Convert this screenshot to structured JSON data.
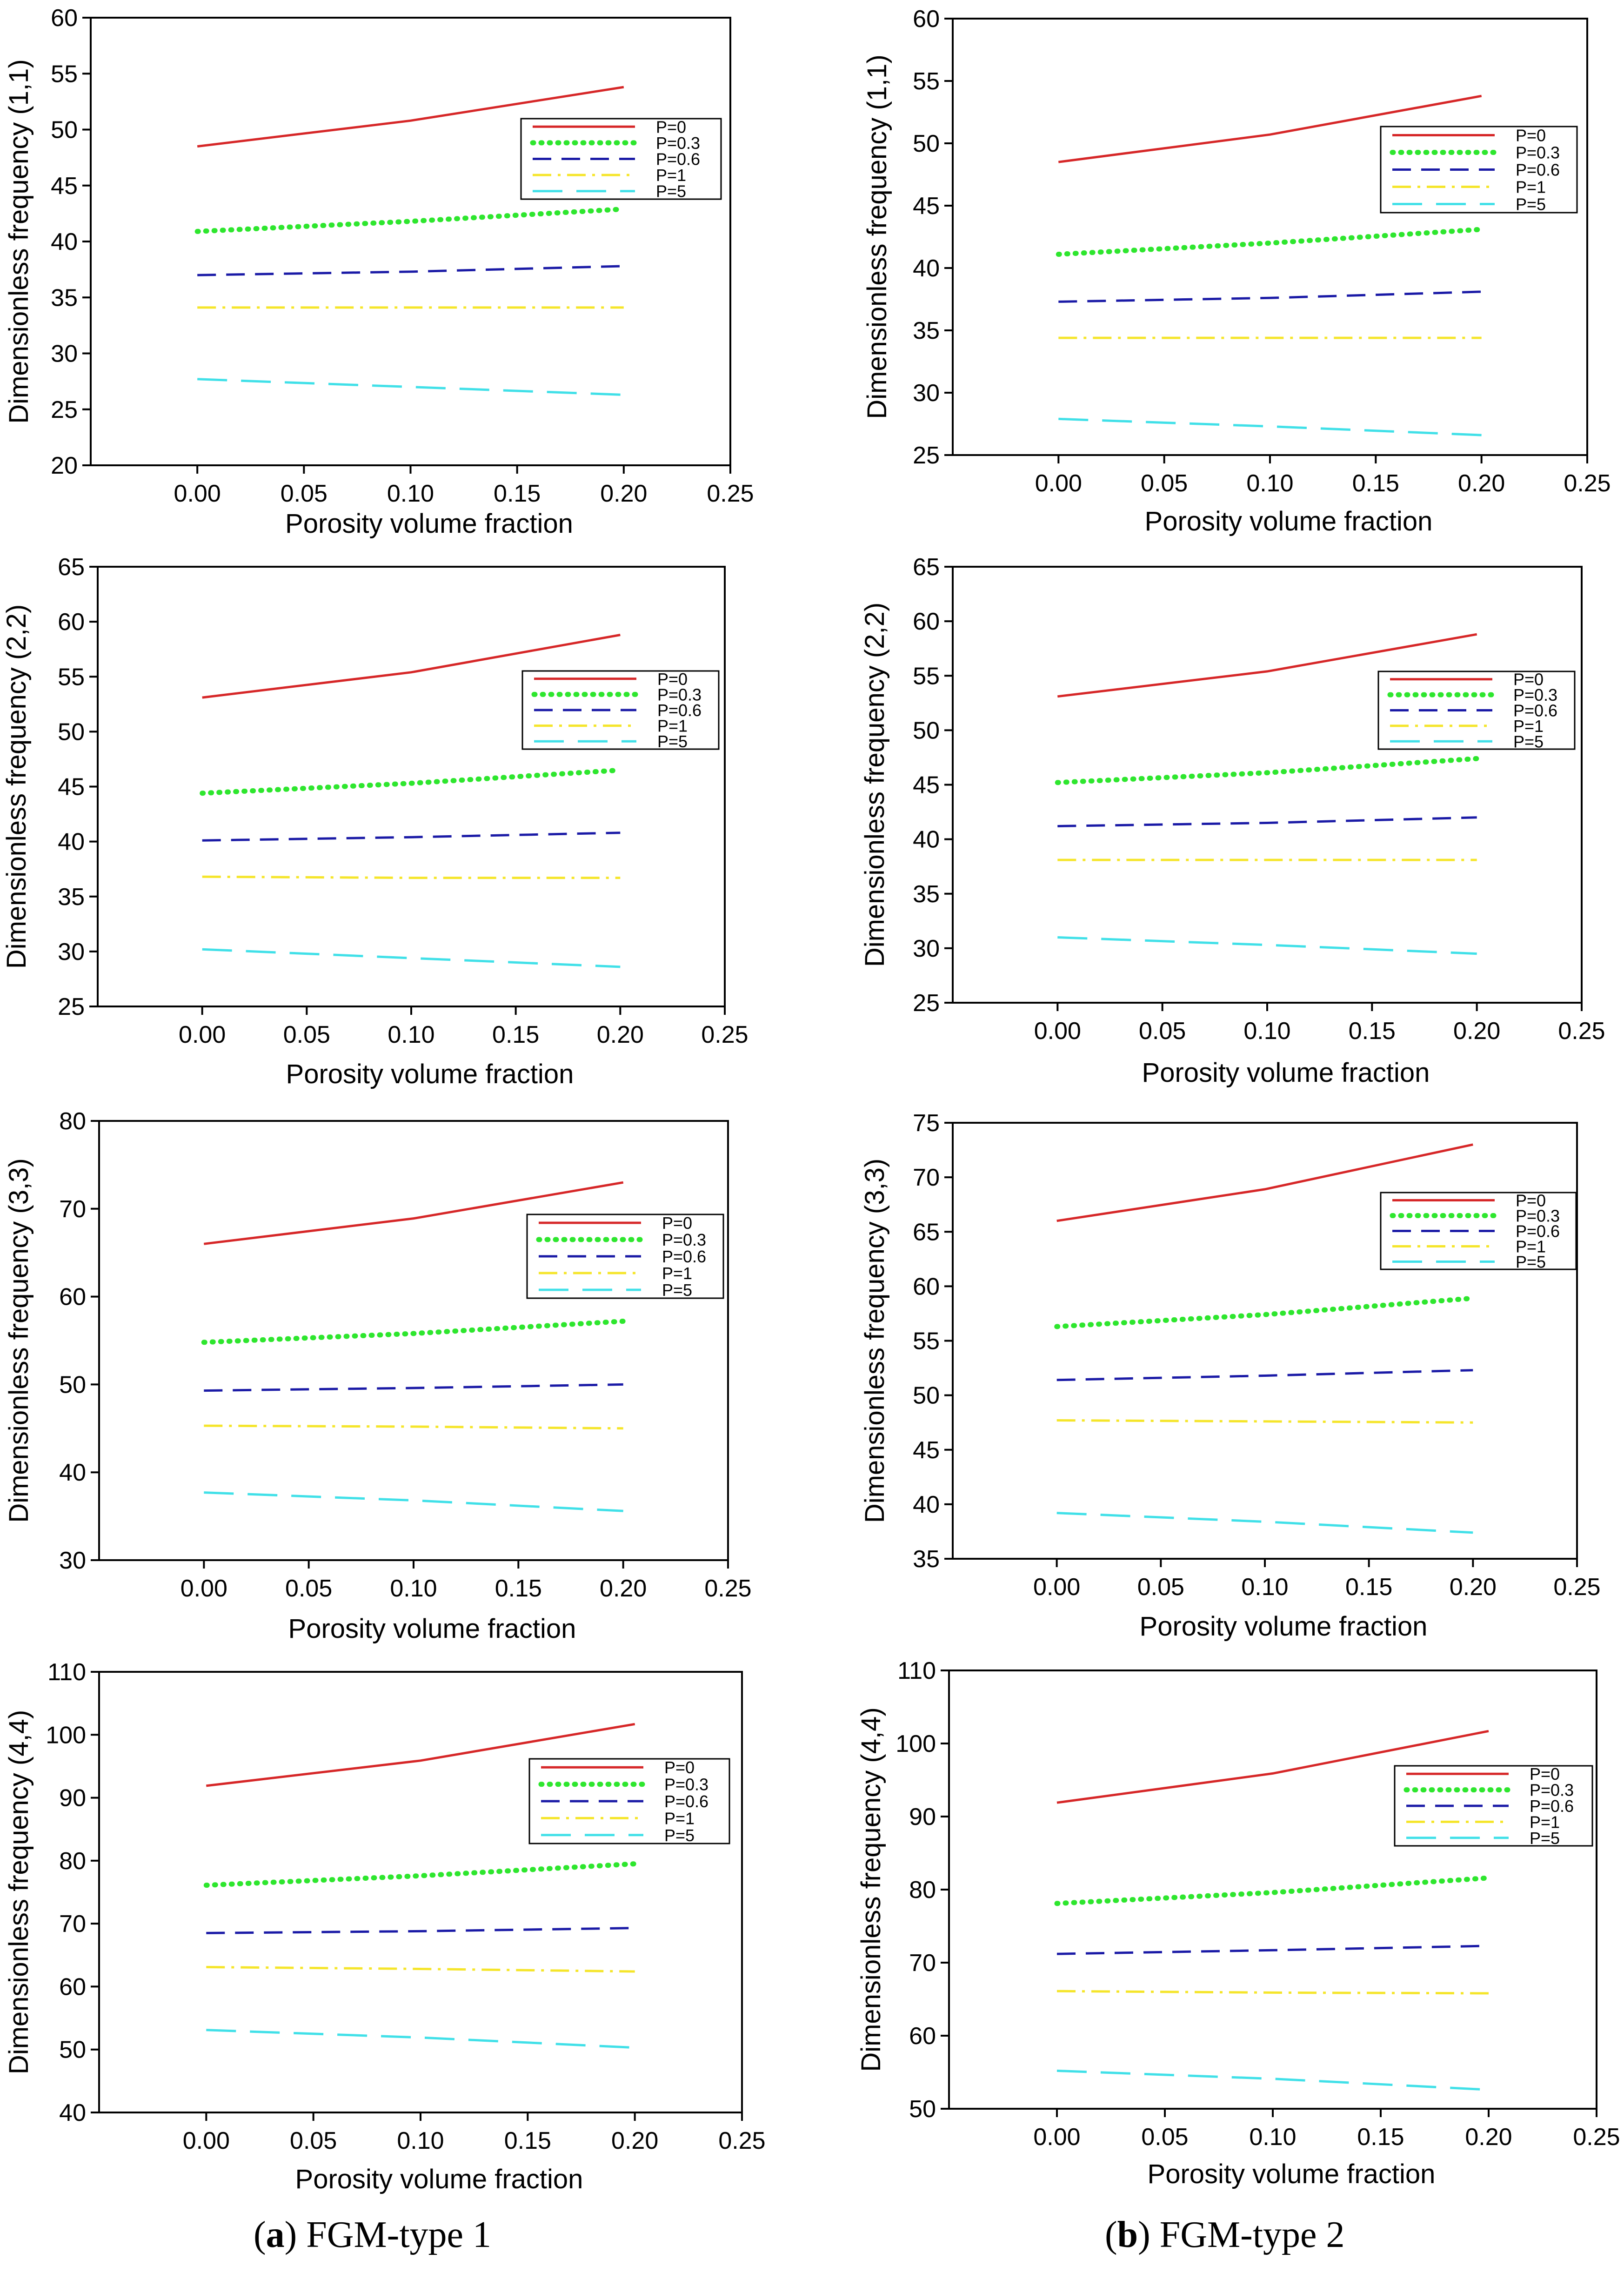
{
  "legend_labels": [
    "P=0",
    "P=0.3",
    "P=0.6",
    "P=1",
    "P=5"
  ],
  "x_ticks": [
    "0.00",
    "0.05",
    "0.10",
    "0.15",
    "0.20",
    "0.25"
  ],
  "xlabel": "Porosity volume fraction",
  "captions": {
    "a": {
      "paren_open": "(",
      "letter": "a",
      "rest": ") FGM-type 1"
    },
    "b": {
      "paren_open": "(",
      "letter": "b",
      "rest": ") FGM-type 2"
    }
  },
  "series_styles": [
    {
      "name": "P=0",
      "color": "#d62728",
      "dash": "solid"
    },
    {
      "name": "P=0.3",
      "color": "#2ee62e",
      "dash": "dotted"
    },
    {
      "name": "P=0.6",
      "color": "#1a1aa6",
      "dash": "dashed"
    },
    {
      "name": "P=1",
      "color": "#f5e52a",
      "dash": "dashdot"
    },
    {
      "name": "P=5",
      "color": "#40e0e8",
      "dash": "longdash"
    }
  ],
  "chart_data": [
    {
      "type": "line",
      "id": "a1",
      "ylabel": "Dimensionless frequency (1,1)",
      "xlabel": "Porosity volume fraction",
      "xlim": [
        -0.05,
        0.25
      ],
      "ylim": [
        20,
        60
      ],
      "y_ticks": [
        "20",
        "25",
        "30",
        "35",
        "40",
        "45",
        "50",
        "55",
        "60"
      ],
      "x": [
        0,
        0.1,
        0.2
      ],
      "series": [
        {
          "name": "P=0",
          "values": [
            48.5,
            50.8,
            53.8
          ]
        },
        {
          "name": "P=0.3",
          "values": [
            40.9,
            41.8,
            42.9
          ]
        },
        {
          "name": "P=0.6",
          "values": [
            37.0,
            37.3,
            37.8
          ]
        },
        {
          "name": "P=1",
          "values": [
            34.1,
            34.1,
            34.1
          ]
        },
        {
          "name": "P=5",
          "values": [
            27.7,
            27.0,
            26.3
          ]
        }
      ]
    },
    {
      "type": "line",
      "id": "b1",
      "ylabel": "Dimensionless frequency (1,1)",
      "xlabel": "Porosity volume fraction",
      "xlim": [
        -0.05,
        0.25
      ],
      "ylim": [
        25,
        60
      ],
      "y_ticks": [
        "25",
        "30",
        "35",
        "40",
        "45",
        "50",
        "55",
        "60"
      ],
      "x": [
        0,
        0.1,
        0.2
      ],
      "series": [
        {
          "name": "P=0",
          "values": [
            48.5,
            50.7,
            53.8
          ]
        },
        {
          "name": "P=0.3",
          "values": [
            41.1,
            42.0,
            43.1
          ]
        },
        {
          "name": "P=0.6",
          "values": [
            37.3,
            37.6,
            38.1
          ]
        },
        {
          "name": "P=1",
          "values": [
            34.4,
            34.4,
            34.4
          ]
        },
        {
          "name": "P=5",
          "values": [
            27.9,
            27.3,
            26.6
          ]
        }
      ]
    },
    {
      "type": "line",
      "id": "a2",
      "ylabel": "Dimensionless frequency (2,2)",
      "xlabel": "Porosity volume fraction",
      "xlim": [
        -0.05,
        0.25
      ],
      "ylim": [
        25,
        65
      ],
      "y_ticks": [
        "25",
        "30",
        "35",
        "40",
        "45",
        "50",
        "55",
        "60",
        "65"
      ],
      "x": [
        0,
        0.1,
        0.2
      ],
      "series": [
        {
          "name": "P=0",
          "values": [
            53.1,
            55.4,
            58.8
          ]
        },
        {
          "name": "P=0.3",
          "values": [
            44.4,
            45.3,
            46.5
          ]
        },
        {
          "name": "P=0.6",
          "values": [
            40.1,
            40.4,
            40.8
          ]
        },
        {
          "name": "P=1",
          "values": [
            36.8,
            36.7,
            36.7
          ]
        },
        {
          "name": "P=5",
          "values": [
            30.2,
            29.4,
            28.6
          ]
        }
      ]
    },
    {
      "type": "line",
      "id": "b2",
      "ylabel": "Dimensionless frequency (2,2)",
      "xlabel": "Porosity volume fraction",
      "xlim": [
        -0.05,
        0.25
      ],
      "ylim": [
        25,
        65
      ],
      "y_ticks": [
        "25",
        "30",
        "35",
        "40",
        "45",
        "50",
        "55",
        "60",
        "65"
      ],
      "x": [
        0,
        0.1,
        0.2
      ],
      "series": [
        {
          "name": "P=0",
          "values": [
            53.1,
            55.4,
            58.8
          ]
        },
        {
          "name": "P=0.3",
          "values": [
            45.2,
            46.1,
            47.4
          ]
        },
        {
          "name": "P=0.6",
          "values": [
            41.2,
            41.5,
            42.0
          ]
        },
        {
          "name": "P=1",
          "values": [
            38.1,
            38.1,
            38.1
          ]
        },
        {
          "name": "P=5",
          "values": [
            31.0,
            30.3,
            29.5
          ]
        }
      ]
    },
    {
      "type": "line",
      "id": "a3",
      "ylabel": "Dimensionless frequency (3,3)",
      "xlabel": "Porosity volume fraction",
      "xlim": [
        -0.05,
        0.25
      ],
      "ylim": [
        30,
        80
      ],
      "y_ticks": [
        "30",
        "40",
        "50",
        "60",
        "70",
        "80"
      ],
      "x": [
        0,
        0.1,
        0.2
      ],
      "series": [
        {
          "name": "P=0",
          "values": [
            66.0,
            68.9,
            73.0
          ]
        },
        {
          "name": "P=0.3",
          "values": [
            54.8,
            55.8,
            57.2
          ]
        },
        {
          "name": "P=0.6",
          "values": [
            49.3,
            49.6,
            50.0
          ]
        },
        {
          "name": "P=1",
          "values": [
            45.3,
            45.2,
            45.0
          ]
        },
        {
          "name": "P=5",
          "values": [
            37.7,
            36.8,
            35.6
          ]
        }
      ]
    },
    {
      "type": "line",
      "id": "b3",
      "ylabel": "Dimensionless frequency (3,3)",
      "xlabel": "Porosity volume fraction",
      "xlim": [
        -0.05,
        0.25
      ],
      "ylim": [
        35,
        75
      ],
      "y_ticks": [
        "35",
        "40",
        "45",
        "50",
        "55",
        "60",
        "65",
        "70",
        "75"
      ],
      "x": [
        0,
        0.1,
        0.2
      ],
      "series": [
        {
          "name": "P=0",
          "values": [
            66.0,
            68.9,
            73.0
          ]
        },
        {
          "name": "P=0.3",
          "values": [
            56.3,
            57.4,
            58.9
          ]
        },
        {
          "name": "P=0.6",
          "values": [
            51.4,
            51.8,
            52.3
          ]
        },
        {
          "name": "P=1",
          "values": [
            47.7,
            47.6,
            47.5
          ]
        },
        {
          "name": "P=5",
          "values": [
            39.2,
            38.4,
            37.4
          ]
        }
      ]
    },
    {
      "type": "line",
      "id": "a4",
      "ylabel": "Dimensionless frequency (4,4)",
      "xlabel": "Porosity volume fraction",
      "xlim": [
        -0.05,
        0.25
      ],
      "ylim": [
        40,
        110
      ],
      "y_ticks": [
        "40",
        "50",
        "60",
        "70",
        "80",
        "90",
        "100",
        "110"
      ],
      "x": [
        0,
        0.1,
        0.2
      ],
      "series": [
        {
          "name": "P=0",
          "values": [
            91.9,
            95.9,
            101.7
          ]
        },
        {
          "name": "P=0.3",
          "values": [
            76.1,
            77.6,
            79.5
          ]
        },
        {
          "name": "P=0.6",
          "values": [
            68.5,
            68.8,
            69.3
          ]
        },
        {
          "name": "P=1",
          "values": [
            63.1,
            62.8,
            62.4
          ]
        },
        {
          "name": "P=5",
          "values": [
            53.1,
            51.9,
            50.3
          ]
        }
      ]
    },
    {
      "type": "line",
      "id": "b4",
      "ylabel": "Dimensionless frequency (4,4)",
      "xlabel": "Porosity volume fraction",
      "xlim": [
        -0.05,
        0.25
      ],
      "ylim": [
        50,
        110
      ],
      "y_ticks": [
        "50",
        "60",
        "70",
        "80",
        "90",
        "100",
        "110"
      ],
      "x": [
        0,
        0.1,
        0.2
      ],
      "series": [
        {
          "name": "P=0",
          "values": [
            91.9,
            95.9,
            101.7
          ]
        },
        {
          "name": "P=0.3",
          "values": [
            78.1,
            79.6,
            81.6
          ]
        },
        {
          "name": "P=0.6",
          "values": [
            71.2,
            71.7,
            72.3
          ]
        },
        {
          "name": "P=1",
          "values": [
            66.1,
            65.9,
            65.8
          ]
        },
        {
          "name": "P=5",
          "values": [
            55.2,
            54.1,
            52.6
          ]
        }
      ]
    }
  ]
}
